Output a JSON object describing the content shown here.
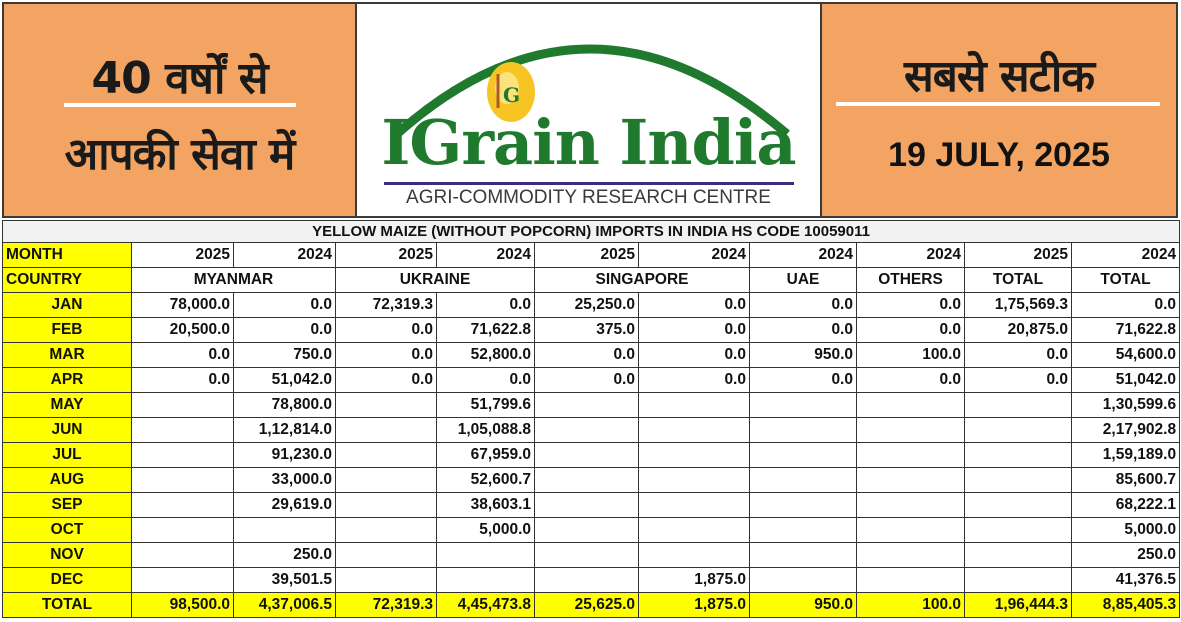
{
  "header": {
    "left_line1": "40 वर्षों से",
    "left_line2": "आपकी सेवा में",
    "right_line1": "सबसे सटीक",
    "date": "19 JULY, 2025",
    "brand": "IGrain India",
    "tagline": "AGRI-COMMODITY RESEARCH CENTRE",
    "colors": {
      "panel": "#f3a463",
      "brand": "#1f7a2e",
      "highlight": "#ffff00"
    }
  },
  "table": {
    "title": "YELLOW MAIZE (WITHOUT POPCORN) IMPORTS IN INDIA HS CODE 10059011",
    "month_label": "MONTH",
    "country_label": "COUNTRY",
    "years": [
      "2025",
      "2024",
      "2025",
      "2024",
      "2025",
      "2024",
      "2024",
      "2024",
      "2025",
      "2024"
    ],
    "countries": [
      "MYANMAR",
      "UKRAINE",
      "SINGAPORE",
      "UAE",
      "OTHERS",
      "TOTAL",
      "TOTAL"
    ],
    "rows": [
      {
        "month": "JAN",
        "cells": [
          "78,000.0",
          "0.0",
          "72,319.3",
          "0.0",
          "25,250.0",
          "0.0",
          "0.0",
          "0.0",
          "1,75,569.3",
          "0.0"
        ]
      },
      {
        "month": "FEB",
        "cells": [
          "20,500.0",
          "0.0",
          "0.0",
          "71,622.8",
          "375.0",
          "0.0",
          "0.0",
          "0.0",
          "20,875.0",
          "71,622.8"
        ]
      },
      {
        "month": "MAR",
        "cells": [
          "0.0",
          "750.0",
          "0.0",
          "52,800.0",
          "0.0",
          "0.0",
          "950.0",
          "100.0",
          "0.0",
          "54,600.0"
        ]
      },
      {
        "month": "APR",
        "cells": [
          "0.0",
          "51,042.0",
          "0.0",
          "0.0",
          "0.0",
          "0.0",
          "0.0",
          "0.0",
          "0.0",
          "51,042.0"
        ]
      },
      {
        "month": "MAY",
        "cells": [
          "",
          "78,800.0",
          "",
          "51,799.6",
          "",
          "",
          "",
          "",
          "",
          "1,30,599.6"
        ]
      },
      {
        "month": "JUN",
        "cells": [
          "",
          "1,12,814.0",
          "",
          "1,05,088.8",
          "",
          "",
          "",
          "",
          "",
          "2,17,902.8"
        ]
      },
      {
        "month": "JUL",
        "cells": [
          "",
          "91,230.0",
          "",
          "67,959.0",
          "",
          "",
          "",
          "",
          "",
          "1,59,189.0"
        ]
      },
      {
        "month": "AUG",
        "cells": [
          "",
          "33,000.0",
          "",
          "52,600.7",
          "",
          "",
          "",
          "",
          "",
          "85,600.7"
        ]
      },
      {
        "month": "SEP",
        "cells": [
          "",
          "29,619.0",
          "",
          "38,603.1",
          "",
          "",
          "",
          "",
          "",
          "68,222.1"
        ]
      },
      {
        "month": "OCT",
        "cells": [
          "",
          "",
          "",
          "5,000.0",
          "",
          "",
          "",
          "",
          "",
          "5,000.0"
        ]
      },
      {
        "month": "NOV",
        "cells": [
          "",
          "250.0",
          "",
          "",
          "",
          "",
          "",
          "",
          "",
          "250.0"
        ]
      },
      {
        "month": "DEC",
        "cells": [
          "",
          "39,501.5",
          "",
          "",
          "",
          "1,875.0",
          "",
          "",
          "",
          "41,376.5"
        ]
      }
    ],
    "total": {
      "label": "TOTAL",
      "cells": [
        "98,500.0",
        "4,37,006.5",
        "72,319.3",
        "4,45,473.8",
        "25,625.0",
        "1,875.0",
        "950.0",
        "100.0",
        "1,96,444.3",
        "8,85,405.3"
      ]
    }
  }
}
